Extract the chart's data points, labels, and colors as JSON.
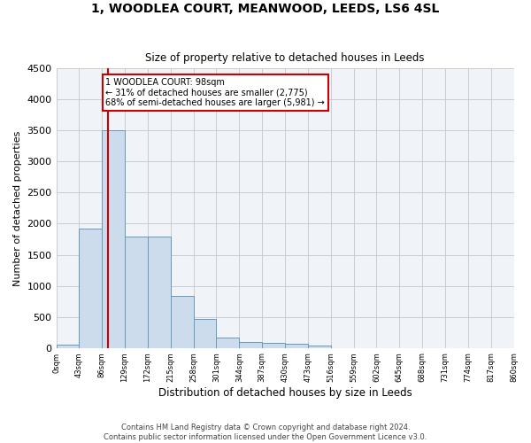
{
  "title": "1, WOODLEA COURT, MEANWOOD, LEEDS, LS6 4SL",
  "subtitle": "Size of property relative to detached houses in Leeds",
  "xlabel": "Distribution of detached houses by size in Leeds",
  "ylabel": "Number of detached properties",
  "footer_line1": "Contains HM Land Registry data © Crown copyright and database right 2024.",
  "footer_line2": "Contains public sector information licensed under the Open Government Licence v3.0.",
  "bin_labels": [
    "0sqm",
    "43sqm",
    "86sqm",
    "129sqm",
    "172sqm",
    "215sqm",
    "258sqm",
    "301sqm",
    "344sqm",
    "387sqm",
    "430sqm",
    "473sqm",
    "516sqm",
    "559sqm",
    "602sqm",
    "645sqm",
    "688sqm",
    "731sqm",
    "774sqm",
    "817sqm",
    "860sqm"
  ],
  "bar_values": [
    50,
    1920,
    3510,
    1790,
    1790,
    840,
    460,
    160,
    100,
    75,
    65,
    40,
    0,
    0,
    0,
    0,
    0,
    0,
    0,
    0
  ],
  "bar_color": "#ccdcec",
  "bar_edge_color": "#6699bb",
  "vline_x": 98,
  "vline_color": "#cc0000",
  "annotation_line1": "1 WOODLEA COURT: 98sqm",
  "annotation_line2": "← 31% of detached houses are smaller (2,775)",
  "annotation_line3": "68% of semi-detached houses are larger (5,981) →",
  "annotation_box_color": "#cc0000",
  "ylim": [
    0,
    4500
  ],
  "yticks": [
    0,
    500,
    1000,
    1500,
    2000,
    2500,
    3000,
    3500,
    4000,
    4500
  ],
  "grid_color": "#cccccc",
  "background_color": "#f0f4f8",
  "bin_width": 43,
  "figwidth": 6.0,
  "figheight": 5.0,
  "dpi": 100
}
